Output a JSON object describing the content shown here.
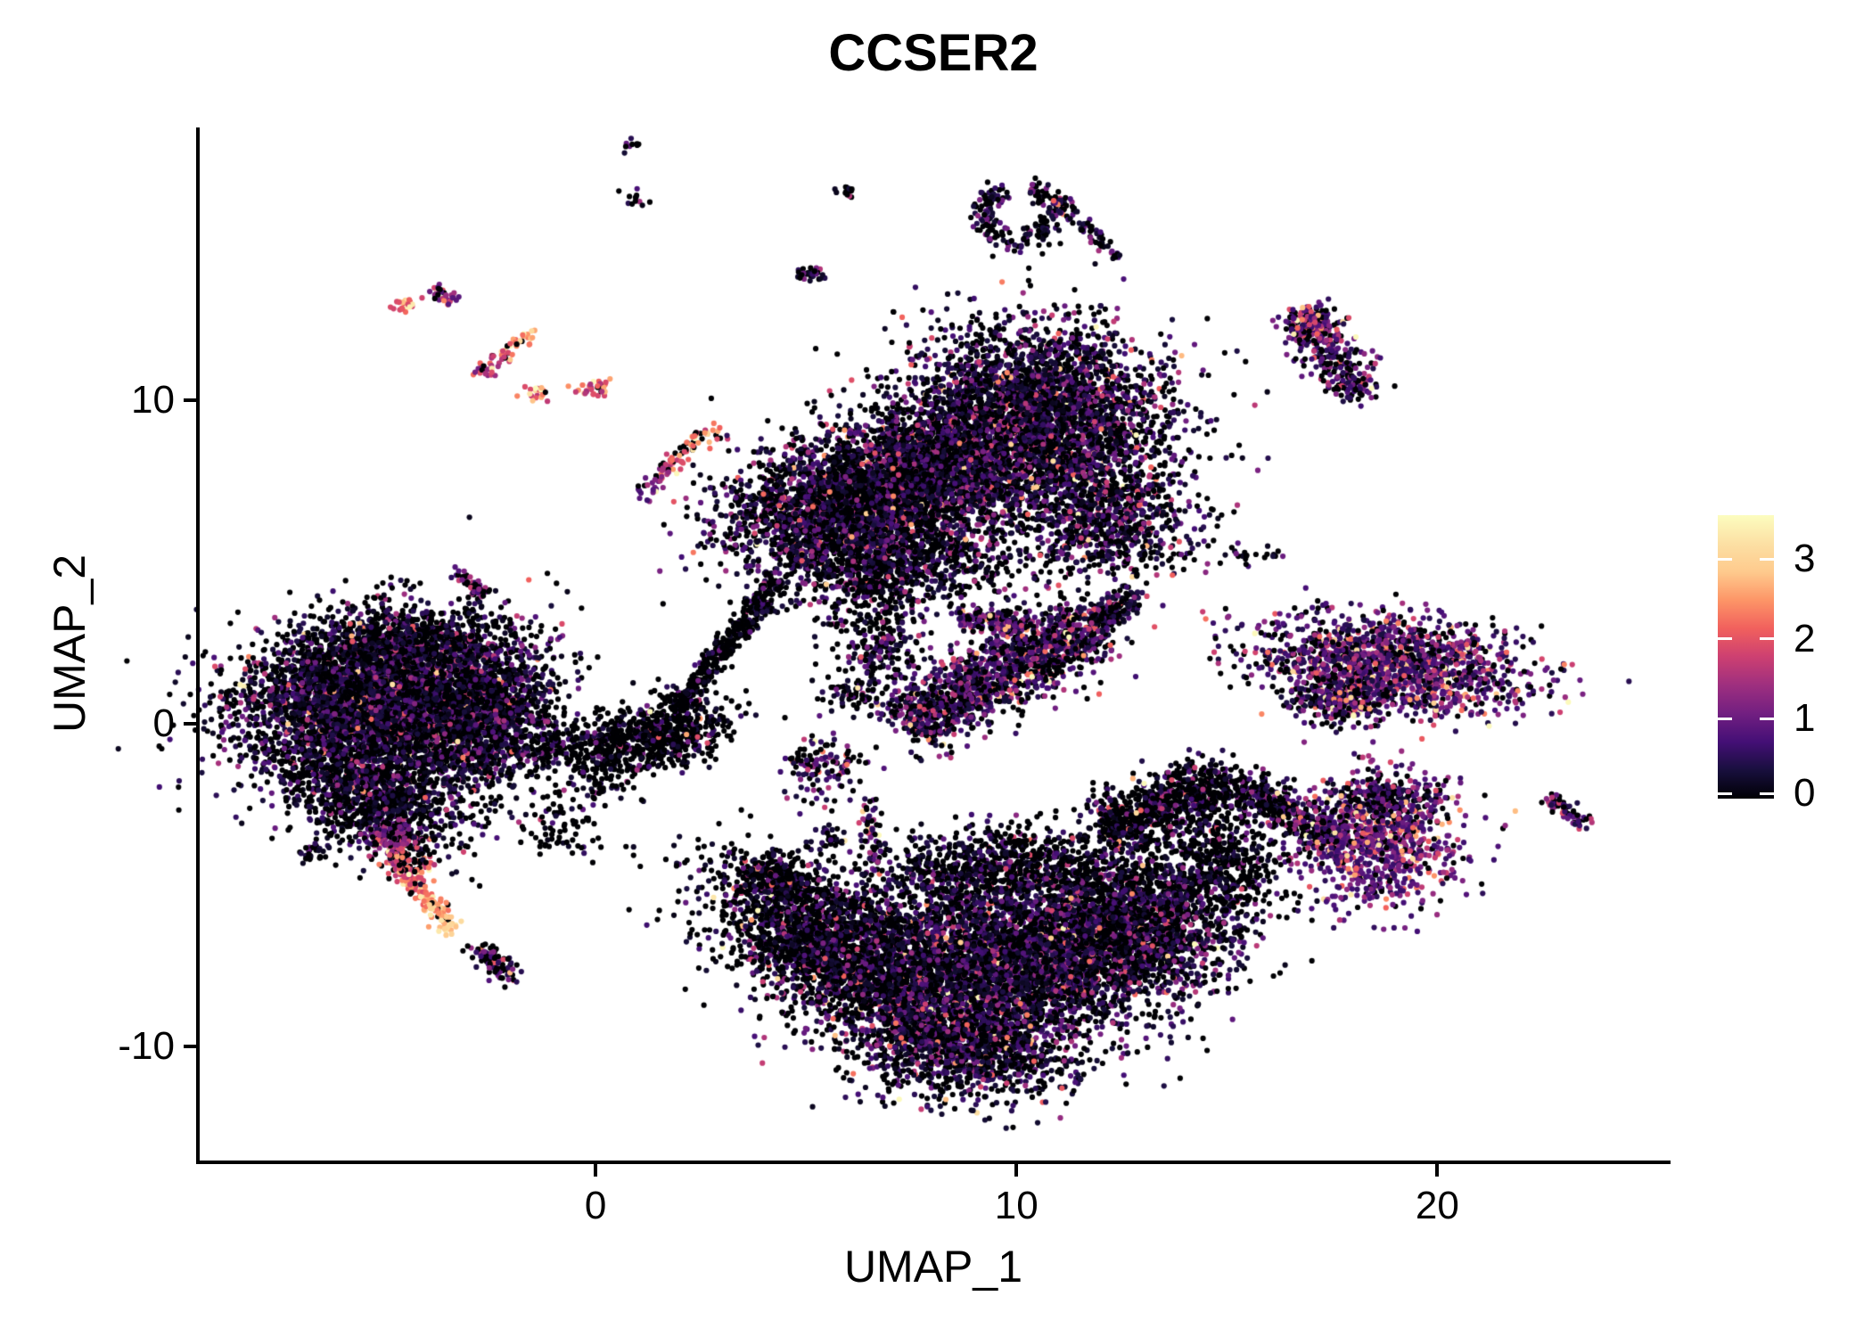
{
  "title": {
    "text": "CCSER2"
  },
  "axes": {
    "x": {
      "label": "UMAP_1",
      "ticks": [
        {
          "label": "0",
          "value": 0
        },
        {
          "label": "10",
          "value": 10
        },
        {
          "label": "20",
          "value": 20
        }
      ]
    },
    "y": {
      "label": "UMAP_2",
      "ticks": [
        {
          "label": "10",
          "value": 10
        },
        {
          "label": "0",
          "value": 0
        },
        {
          "label": "-10",
          "value": -10
        }
      ]
    }
  },
  "legend": {
    "ticks": [
      {
        "label": "3",
        "value": 3
      },
      {
        "label": "2",
        "value": 2
      },
      {
        "label": "1",
        "value": 1
      },
      {
        "label": "0",
        "value": 0
      }
    ]
  },
  "colors": {
    "background": "#ffffff",
    "axis": "#000000",
    "text": "#000000",
    "magma_stops": [
      [
        0,
        "#000004"
      ],
      [
        0.1,
        "#180f3d"
      ],
      [
        0.2,
        "#440f76"
      ],
      [
        0.3,
        "#721f81"
      ],
      [
        0.4,
        "#9e2f7f"
      ],
      [
        0.5,
        "#cd4071"
      ],
      [
        0.6,
        "#f1605d"
      ],
      [
        0.7,
        "#fd9567"
      ],
      [
        0.8,
        "#feca8d"
      ],
      [
        0.9,
        "#fce0a4"
      ],
      [
        1,
        "#fcfdbf"
      ]
    ]
  },
  "chart_data": {
    "type": "scatter",
    "title": "CCSER2",
    "xlabel": "UMAP_1",
    "ylabel": "UMAP_2",
    "x_domain": [
      -9.45,
      25.5
    ],
    "y_domain": [
      -13.53,
      18.45
    ],
    "color_domain": [
      0,
      3.55
    ],
    "point_radius": 3.1,
    "seed": 42,
    "clusters": [
      {
        "t": "g",
        "x": -5.1,
        "y": 0.9,
        "sx": 1.75,
        "sy": 1.15,
        "rot": 12,
        "n": 4200,
        "p0": 0.45,
        "sc": 0.55
      },
      {
        "t": "g",
        "x": -2.9,
        "y": 0.1,
        "sx": 0.95,
        "sy": 1.0,
        "rot": 0,
        "n": 1400,
        "p0": 0.5,
        "sc": 0.5
      },
      {
        "t": "g",
        "x": -5.3,
        "y": -2.0,
        "sx": 1.15,
        "sy": 0.85,
        "rot": -35,
        "n": 1300,
        "p0": 0.58,
        "sc": 0.5
      },
      {
        "t": "g",
        "x": -4.6,
        "y": 2.6,
        "sx": 1.3,
        "sy": 0.45,
        "rot": 8,
        "n": 500,
        "p0": 0.6,
        "sc": 0.45
      },
      {
        "t": "l",
        "x1": -5.25,
        "y1": -3.3,
        "x2": -3.45,
        "y2": -6.35,
        "w": 0.14,
        "n": 210,
        "p0": 0.12,
        "b1": 0.8,
        "b2": 2.6,
        "sc": 0.5,
        "vmax": 3.3
      },
      {
        "t": "l",
        "x1": -5.05,
        "y1": -3.0,
        "x2": -4.25,
        "y2": -4.55,
        "w": 0.3,
        "n": 160,
        "p0": 0.3,
        "b1": 0.6,
        "b2": 1.6,
        "sc": 0.5
      },
      {
        "t": "l",
        "x1": -2.85,
        "y1": -6.9,
        "x2": -2.0,
        "y2": -7.85,
        "w": 0.18,
        "n": 90,
        "p0": 0.45,
        "b": 0.4,
        "sc": 0.6
      },
      {
        "t": "g",
        "x": -6.65,
        "y": -3.95,
        "sx": 0.22,
        "sy": 0.18,
        "n": 26,
        "p0": 0.6,
        "sc": 0.4
      },
      {
        "t": "l",
        "x1": -3.35,
        "y1": 4.65,
        "x2": -2.65,
        "y2": 3.95,
        "w": 0.12,
        "n": 48,
        "p0": 0.35,
        "b": 0.5,
        "sc": 0.55
      },
      {
        "t": "g",
        "x": -4.55,
        "y": 12.95,
        "sx": 0.16,
        "sy": 0.12,
        "n": 26,
        "p0": 0.05,
        "b": 1.8,
        "sc": 0.5,
        "vmax": 3.4
      },
      {
        "t": "g",
        "x": -3.6,
        "y": 13.25,
        "sx": 0.2,
        "sy": 0.14,
        "n": 34,
        "p0": 0.25,
        "b": 0.7,
        "sc": 0.8
      },
      {
        "t": "l",
        "x1": -2.75,
        "y1": 10.8,
        "x2": -1.5,
        "y2": 12.1,
        "w": 0.13,
        "n": 64,
        "p0": 0.1,
        "b1": 1.0,
        "b2": 2.4,
        "sc": 0.5
      },
      {
        "t": "g",
        "x": -1.35,
        "y": 10.25,
        "sx": 0.17,
        "sy": 0.12,
        "n": 22,
        "p0": 0.1,
        "b": 1.6,
        "sc": 0.7
      },
      {
        "t": "g",
        "x": -0.15,
        "y": 10.35,
        "sx": 0.22,
        "sy": 0.13,
        "n": 30,
        "p0": 0.15,
        "b": 1.4,
        "sc": 0.8
      },
      {
        "t": "l",
        "x1": 1.05,
        "y1": 6.95,
        "x2": 2.45,
        "y2": 8.85,
        "w": 0.15,
        "n": 75,
        "p0": 0.2,
        "b1": 0.5,
        "b2": 2.2,
        "sc": 0.4
      },
      {
        "t": "g",
        "x": 2.8,
        "y": 8.95,
        "sx": 0.3,
        "sy": 0.12,
        "n": 20,
        "p0": 0.2,
        "b": 1.6,
        "sc": 0.5
      },
      {
        "t": "g",
        "x": 10.4,
        "y": 9.4,
        "sx": 1.55,
        "sy": 1.45,
        "rot": 0,
        "n": 3900,
        "p0": 0.42,
        "sc": 0.6
      },
      {
        "t": "g",
        "x": 5.9,
        "y": 6.8,
        "sx": 1.45,
        "sy": 1.05,
        "rot": 18,
        "n": 2500,
        "p0": 0.45,
        "sc": 0.6
      },
      {
        "t": "g",
        "x": 8.1,
        "y": 8.0,
        "sx": 1.0,
        "sy": 0.9,
        "n": 1300,
        "p0": 0.45,
        "sc": 0.6
      },
      {
        "t": "g",
        "x": 7.3,
        "y": 5.4,
        "sx": 1.6,
        "sy": 0.75,
        "rot": -10,
        "n": 900,
        "p0": 0.55,
        "sc": 0.5
      },
      {
        "t": "g",
        "x": 6.6,
        "y": 4.2,
        "sx": 0.8,
        "sy": 0.8,
        "n": 350,
        "p0": 0.6,
        "sc": 0.5
      },
      {
        "t": "g",
        "x": 12.2,
        "y": 6.3,
        "sx": 1.0,
        "sy": 1.0,
        "n": 800,
        "p0": 0.45,
        "sc": 0.6
      },
      {
        "t": "r",
        "x": 10.05,
        "y": 15.8,
        "r": 0.85,
        "rw": 0.18,
        "a1": 110,
        "a2": 430,
        "n": 200,
        "p0": 0.5,
        "sc": 0.5
      },
      {
        "t": "l",
        "x1": 11.0,
        "y1": 16.2,
        "x2": 12.45,
        "y2": 14.35,
        "w": 0.12,
        "n": 70,
        "p0": 0.45,
        "sc": 0.5
      },
      {
        "t": "g",
        "x": 5.95,
        "y": 16.45,
        "sx": 0.12,
        "sy": 0.1,
        "n": 14,
        "p0": 0.5,
        "sc": 0.5
      },
      {
        "t": "g",
        "x": 5.15,
        "y": 13.9,
        "sx": 0.2,
        "sy": 0.13,
        "n": 30,
        "p0": 0.3,
        "sc": 0.6
      },
      {
        "t": "g",
        "x": 0.9,
        "y": 17.9,
        "sx": 0.1,
        "sy": 0.1,
        "n": 10,
        "p0": 0.6,
        "sc": 0.4
      },
      {
        "t": "g",
        "x": 0.95,
        "y": 16.2,
        "sx": 0.12,
        "sy": 0.12,
        "n": 12,
        "p0": 0.6,
        "sc": 0.4
      },
      {
        "t": "l",
        "x1": 16.85,
        "y1": 12.55,
        "x2": 18.2,
        "y2": 10.15,
        "w": 0.33,
        "n": 300,
        "p0": 0.3,
        "b": 0.4,
        "sc": 0.75
      },
      {
        "t": "g",
        "x": 16.9,
        "y": 12.4,
        "sx": 0.35,
        "sy": 0.3,
        "n": 120,
        "p0": 0.25,
        "b": 0.5,
        "sc": 0.75
      },
      {
        "t": "g",
        "x": 15.7,
        "y": 5.3,
        "sx": 0.5,
        "sy": 0.2,
        "n": 22,
        "p0": 0.55,
        "sc": 0.6
      },
      {
        "t": "g",
        "x": 18.85,
        "y": 1.8,
        "sx": 1.6,
        "sy": 0.7,
        "rot": -8,
        "n": 1550,
        "p0": 0.22,
        "b": 0.35,
        "sc": 0.7
      },
      {
        "t": "g",
        "x": 17.6,
        "y": 0.7,
        "sx": 0.5,
        "sy": 0.35,
        "n": 250,
        "p0": 0.45,
        "b": 0.3,
        "sc": 0.8
      },
      {
        "t": "l",
        "x1": 7.4,
        "y1": 0.0,
        "x2": 11.9,
        "y2": 3.1,
        "w": 0.55,
        "n": 1500,
        "p0": 0.35,
        "b": 0.3,
        "sc": 0.6
      },
      {
        "t": "l",
        "x1": 11.9,
        "y1": 3.1,
        "x2": 12.75,
        "y2": 4.05,
        "w": 0.2,
        "n": 160,
        "p0": 0.4,
        "sc": 0.5
      },
      {
        "t": "l",
        "x1": 8.6,
        "y1": 3.3,
        "x2": 10.3,
        "y2": 3.05,
        "w": 0.18,
        "n": 160,
        "p0": 0.3,
        "b": 0.4,
        "sc": 0.6
      },
      {
        "t": "g",
        "x": 6.8,
        "y": 2.3,
        "sx": 0.5,
        "sy": 0.4,
        "n": 140,
        "p0": 0.5,
        "sc": 0.5
      },
      {
        "t": "g",
        "x": 6.3,
        "y": 0.9,
        "sx": 0.4,
        "sy": 0.3,
        "n": 80,
        "p0": 0.55,
        "sc": 0.5
      },
      {
        "t": "g",
        "x": 1.5,
        "y": -0.35,
        "sx": 0.85,
        "sy": 0.5,
        "rot": 15,
        "n": 620,
        "p0": 0.72,
        "sc": 0.45
      },
      {
        "t": "l",
        "x1": 1.9,
        "y1": 0.4,
        "x2": 4.35,
        "y2": 4.45,
        "w": 0.17,
        "n": 380,
        "p0": 0.75,
        "sc": 0.4
      },
      {
        "t": "l",
        "x1": -1.6,
        "y1": -0.9,
        "x2": 0.6,
        "y2": -0.3,
        "w": 0.3,
        "n": 140,
        "p0": 0.7,
        "sc": 0.45
      },
      {
        "t": "g",
        "x": -0.9,
        "y": -3.1,
        "sx": 0.5,
        "sy": 0.6,
        "n": 90,
        "p0": 0.7,
        "sc": 0.5
      },
      {
        "t": "g",
        "x": 0.2,
        "y": -1.5,
        "sx": 0.4,
        "sy": 0.4,
        "n": 90,
        "p0": 0.75,
        "sc": 0.4
      },
      {
        "t": "g",
        "x": 5.45,
        "y": -1.4,
        "sx": 0.45,
        "sy": 0.55,
        "n": 130,
        "p0": 0.45,
        "b": 0.3,
        "sc": 0.7
      },
      {
        "t": "l",
        "x1": 6.45,
        "y1": -2.4,
        "x2": 6.7,
        "y2": -4.5,
        "w": 0.12,
        "n": 55,
        "p0": 0.4,
        "b": 0.4,
        "sc": 0.7
      },
      {
        "t": "g",
        "x": 5.6,
        "y": -3.6,
        "sx": 0.2,
        "sy": 0.15,
        "n": 25,
        "p0": 0.5,
        "sc": 0.5
      },
      {
        "t": "g",
        "x": 5.5,
        "y": -6.9,
        "sx": 1.7,
        "sy": 0.95,
        "rot": -42,
        "n": 2300,
        "p0": 0.62,
        "sc": 0.55
      },
      {
        "t": "l",
        "x1": 3.85,
        "y1": -4.35,
        "x2": 4.8,
        "y2": -5.2,
        "w": 0.3,
        "n": 220,
        "p0": 0.65,
        "sc": 0.5
      },
      {
        "t": "g",
        "x": 9.6,
        "y": -7.3,
        "sx": 2.0,
        "sy": 1.35,
        "rot": 8,
        "n": 4100,
        "p0": 0.4,
        "sc": 0.55
      },
      {
        "t": "g",
        "x": 8.7,
        "y": -9.9,
        "sx": 1.25,
        "sy": 0.8,
        "rot": -12,
        "n": 1300,
        "p0": 0.42,
        "sc": 0.55
      },
      {
        "t": "g",
        "x": 12.7,
        "y": -6.1,
        "sx": 1.25,
        "sy": 1.15,
        "n": 1900,
        "p0": 0.52,
        "sc": 0.55
      },
      {
        "t": "g",
        "x": 9.2,
        "y": -4.4,
        "sx": 1.5,
        "sy": 0.6,
        "rot": 5,
        "n": 700,
        "p0": 0.6,
        "sc": 0.5
      },
      {
        "t": "l",
        "x1": 12.1,
        "y1": -3.3,
        "x2": 14.9,
        "y2": -1.75,
        "w": 0.45,
        "n": 800,
        "p0": 0.62,
        "sc": 0.55
      },
      {
        "t": "l",
        "x1": 15.3,
        "y1": -1.9,
        "x2": 17.5,
        "y2": -3.5,
        "w": 0.3,
        "n": 380,
        "p0": 0.6,
        "b": 0.3,
        "sc": 0.6
      },
      {
        "t": "g",
        "x": 14.9,
        "y": -4.3,
        "sx": 0.7,
        "sy": 0.8,
        "n": 450,
        "p0": 0.7,
        "sc": 0.5
      },
      {
        "t": "g",
        "x": 18.6,
        "y": -3.55,
        "sx": 0.9,
        "sy": 1.0,
        "rot": -15,
        "n": 950,
        "p0": 0.15,
        "b": 0.5,
        "sc": 0.7,
        "vmax": 3.2
      },
      {
        "t": "g",
        "x": 18.6,
        "y": -2.3,
        "sx": 0.6,
        "sy": 0.3,
        "n": 150,
        "p0": 0.5,
        "sc": 0.5
      },
      {
        "t": "l",
        "x1": 22.65,
        "y1": -2.25,
        "x2": 23.65,
        "y2": -3.25,
        "w": 0.14,
        "n": 65,
        "p0": 0.35,
        "b": 0.4,
        "sc": 0.6
      }
    ],
    "extra_points": [
      [
        8.5,
        8.2,
        2.9
      ],
      [
        9.1,
        8.6,
        2.6
      ],
      [
        8.15,
        -8.4,
        3.45
      ],
      [
        17.95,
        -5.3,
        3.3
      ],
      [
        13.0,
        -4.4,
        2.8
      ],
      [
        -4.05,
        -5.6,
        2.9
      ]
    ]
  }
}
